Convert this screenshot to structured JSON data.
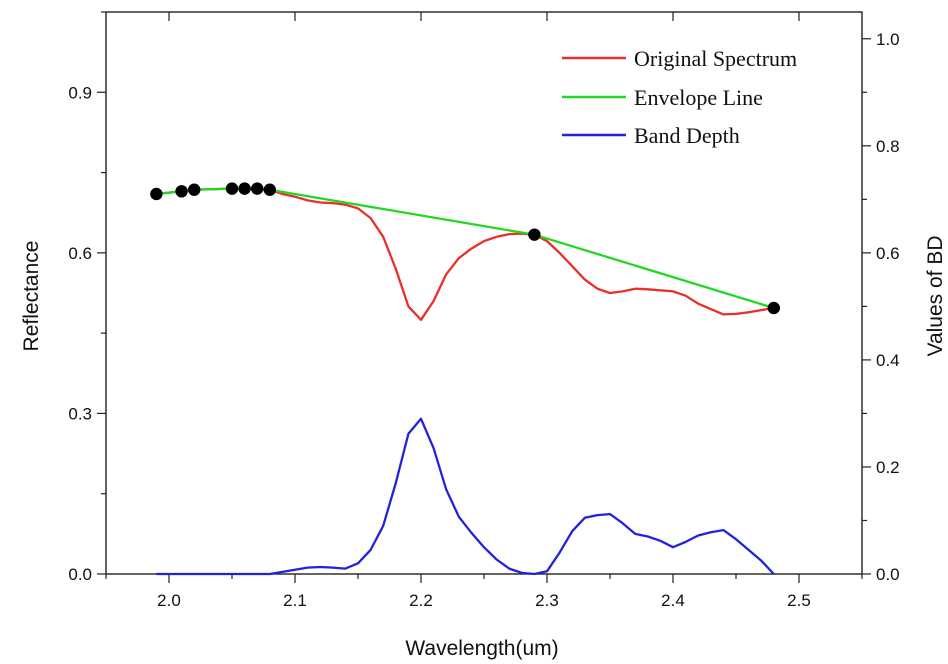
{
  "chart_data": {
    "type": "line",
    "xlabel": "Wavelength(um)",
    "ylabel": "Reflectance",
    "y2label": "Values of BD",
    "xlim": [
      1.95,
      2.55
    ],
    "ylim": [
      0.0,
      1.05
    ],
    "y2lim": [
      0.0,
      1.05
    ],
    "xticks": [
      2.0,
      2.1,
      2.2,
      2.3,
      2.4,
      2.5
    ],
    "yticks": [
      0.0,
      0.3,
      0.6,
      0.9
    ],
    "y2ticks": [
      0.0,
      0.2,
      0.4,
      0.6,
      0.8,
      1.0
    ],
    "legend_position": "top-right",
    "series": [
      {
        "name": "Original Spectrum",
        "color": "#e8302a",
        "axis": "left",
        "x": [
          1.99,
          2.01,
          2.02,
          2.05,
          2.06,
          2.07,
          2.08,
          2.09,
          2.1,
          2.11,
          2.12,
          2.13,
          2.14,
          2.15,
          2.16,
          2.17,
          2.18,
          2.19,
          2.2,
          2.21,
          2.22,
          2.23,
          2.24,
          2.25,
          2.26,
          2.27,
          2.28,
          2.29,
          2.3,
          2.31,
          2.32,
          2.33,
          2.34,
          2.35,
          2.36,
          2.37,
          2.38,
          2.39,
          2.4,
          2.41,
          2.42,
          2.43,
          2.44,
          2.45,
          2.46,
          2.47,
          2.48
        ],
        "values": [
          0.71,
          0.715,
          0.718,
          0.72,
          0.72,
          0.718,
          0.718,
          0.71,
          0.705,
          0.698,
          0.694,
          0.693,
          0.69,
          0.683,
          0.665,
          0.63,
          0.57,
          0.5,
          0.475,
          0.51,
          0.56,
          0.59,
          0.608,
          0.622,
          0.63,
          0.635,
          0.636,
          0.634,
          0.622,
          0.6,
          0.575,
          0.55,
          0.533,
          0.525,
          0.528,
          0.533,
          0.532,
          0.53,
          0.528,
          0.52,
          0.505,
          0.495,
          0.485,
          0.486,
          0.489,
          0.493,
          0.497
        ]
      },
      {
        "name": "Envelope Line",
        "color": "#22d822",
        "axis": "left",
        "x": [
          1.99,
          2.01,
          2.02,
          2.05,
          2.06,
          2.07,
          2.08,
          2.29,
          2.48
        ],
        "values": [
          0.71,
          0.715,
          0.718,
          0.72,
          0.72,
          0.72,
          0.718,
          0.634,
          0.497
        ]
      },
      {
        "name": "Band Depth",
        "color": "#2222dd",
        "axis": "right",
        "x": [
          1.99,
          2.0,
          2.02,
          2.04,
          2.06,
          2.08,
          2.09,
          2.1,
          2.11,
          2.12,
          2.13,
          2.14,
          2.15,
          2.16,
          2.17,
          2.18,
          2.19,
          2.2,
          2.21,
          2.22,
          2.23,
          2.24,
          2.25,
          2.26,
          2.27,
          2.28,
          2.29,
          2.3,
          2.31,
          2.32,
          2.33,
          2.34,
          2.35,
          2.36,
          2.37,
          2.38,
          2.39,
          2.4,
          2.41,
          2.42,
          2.43,
          2.44,
          2.45,
          2.46,
          2.47,
          2.48
        ],
        "values": [
          0.0,
          0.0,
          0.0,
          0.0,
          0.0,
          0.0,
          0.004,
          0.008,
          0.012,
          0.013,
          0.012,
          0.01,
          0.02,
          0.045,
          0.09,
          0.17,
          0.262,
          0.29,
          0.235,
          0.158,
          0.107,
          0.077,
          0.05,
          0.027,
          0.01,
          0.002,
          0.0,
          0.005,
          0.04,
          0.08,
          0.105,
          0.11,
          0.112,
          0.095,
          0.075,
          0.07,
          0.062,
          0.05,
          0.06,
          0.072,
          0.078,
          0.082,
          0.065,
          0.045,
          0.025,
          0.0
        ]
      }
    ],
    "points": {
      "color": "#000000",
      "axis": "left",
      "x": [
        1.99,
        2.01,
        2.02,
        2.05,
        2.06,
        2.07,
        2.08,
        2.29,
        2.48
      ],
      "values": [
        0.71,
        0.715,
        0.718,
        0.72,
        0.72,
        0.72,
        0.718,
        0.634,
        0.497
      ]
    }
  }
}
